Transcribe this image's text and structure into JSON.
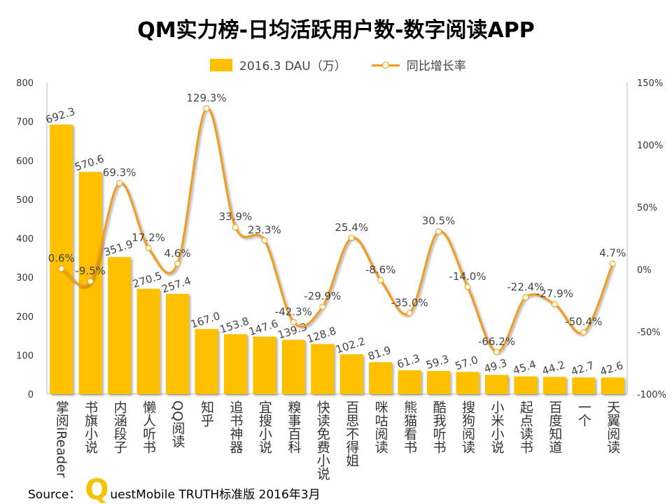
{
  "chart_data": {
    "type": "bar",
    "title": "QM实力榜-日均活跃用户数-数字阅读APP",
    "categories": [
      "掌阅iReader",
      "书旗小说",
      "内涵段子",
      "懒人听书",
      "QQ阅读",
      "知乎",
      "追书神器",
      "宜搜小说",
      "糗事百科",
      "快读免费小说",
      "百思不得姐",
      "咪咕阅读",
      "熊猫看书",
      "酷我听书",
      "搜狗阅读",
      "小米小说",
      "起点读书",
      "百度知道",
      "一个",
      "天翼阅读"
    ],
    "series": [
      {
        "name": "2016.3 DAU（万）",
        "type": "bar",
        "axis": "left",
        "color": "#FFC000",
        "values": [
          692.3,
          570.6,
          351.9,
          270.5,
          257.4,
          167.0,
          153.8,
          147.6,
          139.3,
          128.8,
          102.2,
          81.9,
          61.3,
          59.3,
          57.0,
          49.3,
          45.4,
          44.2,
          42.7,
          42.6
        ]
      },
      {
        "name": "同比增长率",
        "type": "line",
        "axis": "right",
        "color": "#F39A1F",
        "values": [
          0.6,
          -9.5,
          69.3,
          17.2,
          4.6,
          129.3,
          33.9,
          23.3,
          -42.3,
          -29.9,
          25.4,
          -8.6,
          -35.0,
          30.5,
          -14.0,
          -66.2,
          -22.4,
          -27.9,
          -50.4,
          4.7
        ]
      }
    ],
    "ylim": [
      0,
      800
    ],
    "yticks": [
      "0",
      "100",
      "200",
      "300",
      "400",
      "500",
      "600",
      "700",
      "800"
    ],
    "y2lim": [
      -100,
      150
    ],
    "y2ticks": [
      "-100%",
      "-50%",
      "0%",
      "50%",
      "100%",
      "150%"
    ],
    "legend": "top",
    "grid": false
  },
  "source": {
    "prefix": "Source：",
    "logo_letter": "Q",
    "text": "uestMobile TRUTH标准版 2016年3月"
  }
}
